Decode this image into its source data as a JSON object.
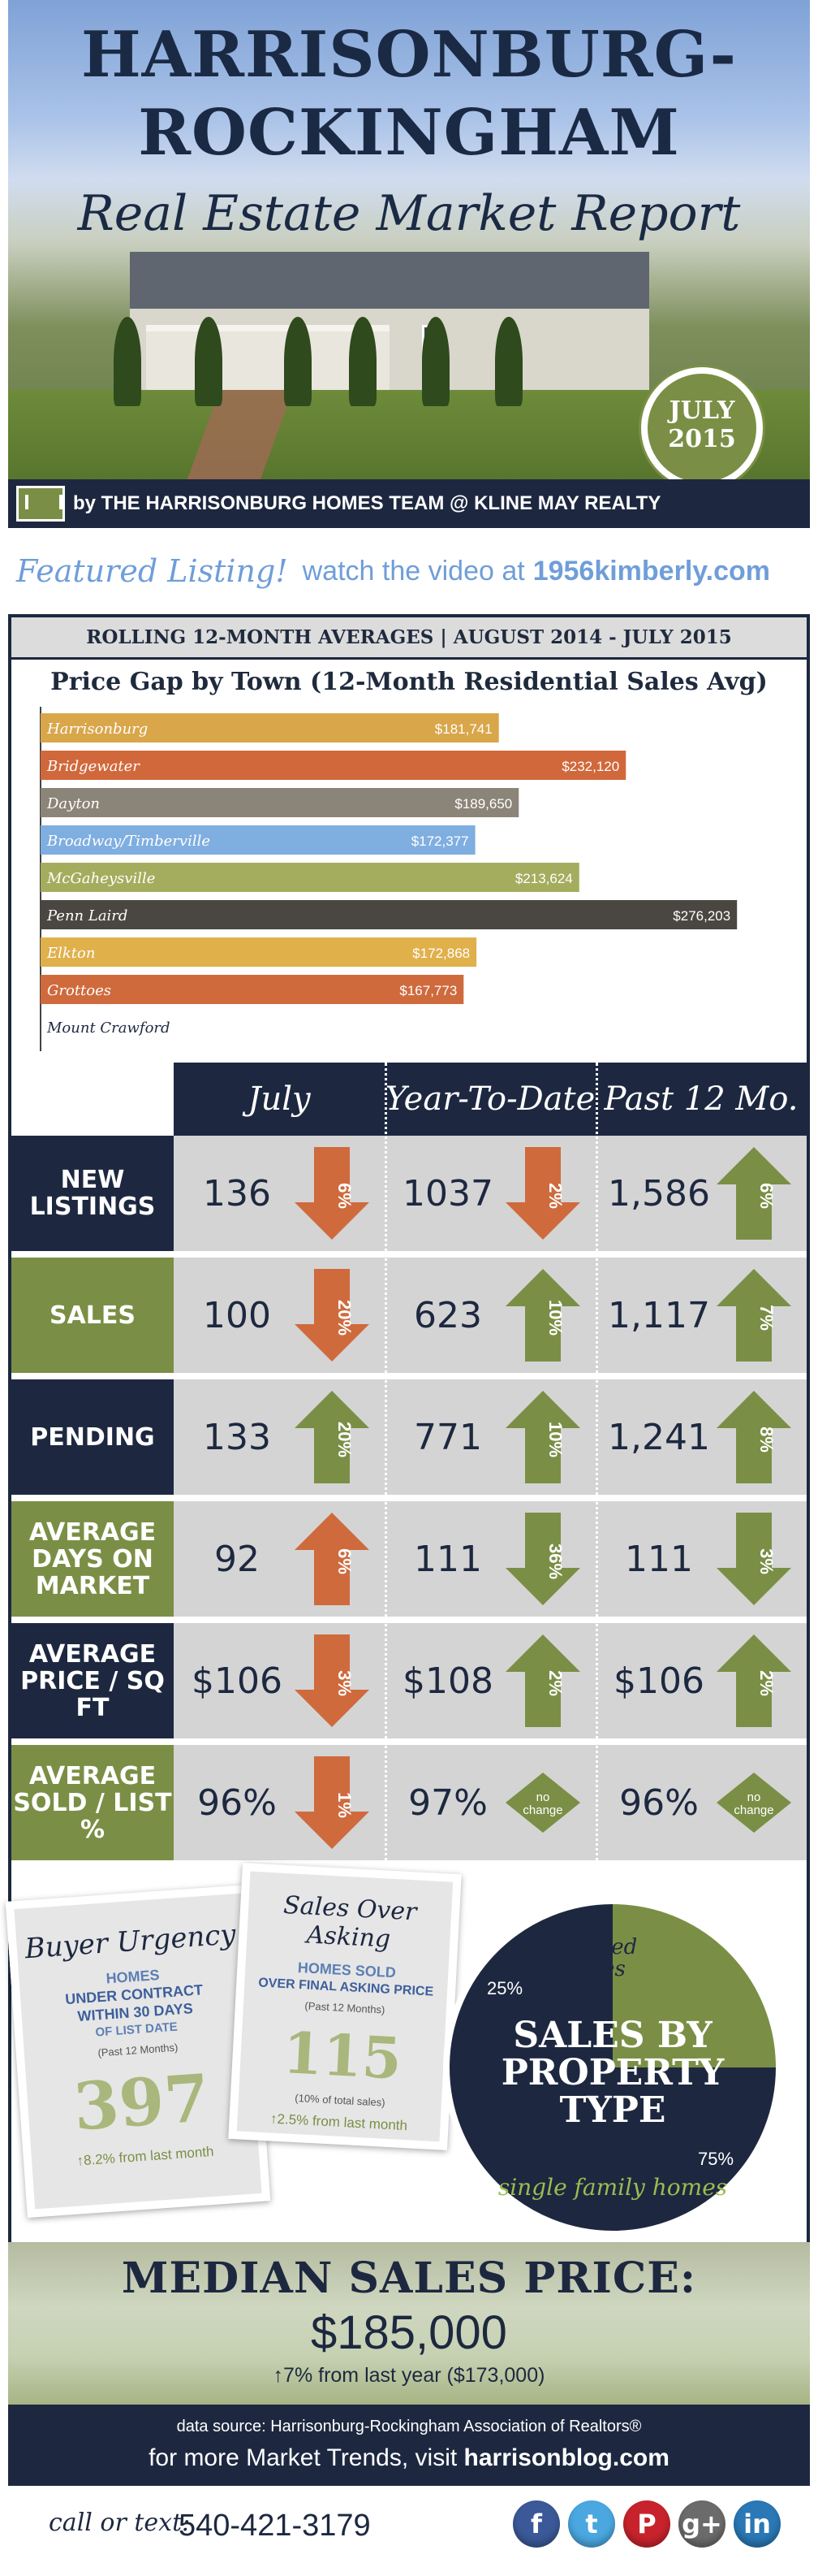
{
  "header": {
    "title_line1": "HARRISONBURG-",
    "title_line2": "ROCKINGHAM",
    "subtitle": "Real Estate Market Report",
    "month": "JULY",
    "year": "2015",
    "byline": "by THE HARRISONBURG HOMES TEAM @ KLINE MAY REALTY"
  },
  "featured": {
    "label": "Featured Listing!",
    "text": "watch the video at",
    "url": "1956kimberly.com"
  },
  "rolling_header": "ROLLING 12-MONTH AVERAGES | AUGUST 2014 - JULY 2015",
  "chart_title": "Price Gap by Town (12-Month Residential Sales Avg)",
  "chart_data": {
    "type": "bar",
    "orientation": "horizontal",
    "title": "Price Gap by Town (12-Month Residential Sales Avg)",
    "categories": [
      "Harrisonburg",
      "Bridgewater",
      "Dayton",
      "Broadway/Timberville",
      "McGaheysville",
      "Penn Laird",
      "Elkton",
      "Grottoes",
      "Mount Crawford"
    ],
    "values": [
      181741,
      232120,
      189650,
      172377,
      213624,
      276203,
      172868,
      167773,
      null
    ],
    "value_labels": [
      "$181,741",
      "$232,120",
      "$189,650",
      "$172,377",
      "$213,624",
      "$276,203",
      "$172,868",
      "$167,773",
      ""
    ],
    "colors": [
      "#d9a64a",
      "#d1683b",
      "#8b8478",
      "#7faee0",
      "#a4ad5e",
      "#4a4742",
      "#e0b04b",
      "#cf6a3d",
      "#ffffff"
    ],
    "xlim": [
      0,
      280000
    ]
  },
  "stats": {
    "columns": [
      "July",
      "Year-To-Date",
      "Past 12 Mo."
    ],
    "rows": [
      {
        "label": "NEW LISTINGS",
        "label_color": "#1d2840",
        "cells": [
          {
            "value": "136",
            "change": "6%",
            "dir": "down",
            "color": "#cf6a3d"
          },
          {
            "value": "1037",
            "change": "2%",
            "dir": "down",
            "color": "#cf6a3d"
          },
          {
            "value": "1,586",
            "change": "6%",
            "dir": "up",
            "color": "#7a8f45"
          }
        ]
      },
      {
        "label": "SALES",
        "label_color": "#7a8f45",
        "cells": [
          {
            "value": "100",
            "change": "20%",
            "dir": "down",
            "color": "#cf6a3d"
          },
          {
            "value": "623",
            "change": "10%",
            "dir": "up",
            "color": "#7a8f45"
          },
          {
            "value": "1,117",
            "change": "7%",
            "dir": "up",
            "color": "#7a8f45"
          }
        ]
      },
      {
        "label": "PENDING",
        "label_color": "#1d2840",
        "cells": [
          {
            "value": "133",
            "change": "20%",
            "dir": "up",
            "color": "#7a8f45"
          },
          {
            "value": "771",
            "change": "10%",
            "dir": "up",
            "color": "#7a8f45"
          },
          {
            "value": "1,241",
            "change": "8%",
            "dir": "up",
            "color": "#7a8f45"
          }
        ]
      },
      {
        "label": "AVERAGE DAYS ON MARKET",
        "label_color": "#7a8f45",
        "cells": [
          {
            "value": "92",
            "change": "6%",
            "dir": "up",
            "color": "#cf6a3d"
          },
          {
            "value": "111",
            "change": "36%",
            "dir": "down",
            "color": "#7a8f45"
          },
          {
            "value": "111",
            "change": "3%",
            "dir": "down",
            "color": "#7a8f45"
          }
        ]
      },
      {
        "label": "AVERAGE PRICE / SQ FT",
        "label_color": "#1d2840",
        "cells": [
          {
            "value": "$106",
            "change": "3%",
            "dir": "down",
            "color": "#cf6a3d"
          },
          {
            "value": "$108",
            "change": "2%",
            "dir": "up",
            "color": "#7a8f45"
          },
          {
            "value": "$106",
            "change": "2%",
            "dir": "up",
            "color": "#7a8f45"
          }
        ]
      },
      {
        "label": "AVERAGE SOLD / LIST %",
        "label_color": "#7a8f45",
        "cells": [
          {
            "value": "96%",
            "change": "1%",
            "dir": "down",
            "color": "#cf6a3d"
          },
          {
            "value": "97%",
            "change": "no change",
            "dir": "none",
            "color": "#7a8f45"
          },
          {
            "value": "96%",
            "change": "no change",
            "dir": "none",
            "color": "#7a8f45"
          }
        ]
      }
    ]
  },
  "buyer_urgency": {
    "title": "Buyer Urgency",
    "line1": "HOMES",
    "line2": "UNDER CONTRACT",
    "line3": "WITHIN 30 DAYS",
    "line4": "OF LIST DATE",
    "small": "(Past 12 Months)",
    "number": "397",
    "change": "↑8.2% from last month"
  },
  "sales_over_asking": {
    "title": "Sales Over Asking",
    "line1": "HOMES SOLD",
    "line2": "OVER FINAL ASKING PRICE",
    "small": "(Past 12 Months)",
    "number": "115",
    "note": "(10% of total sales)",
    "change": "↑2.5% from last month"
  },
  "property_type": {
    "title_line1": "SALES BY",
    "title_line2": "PROPERTY",
    "title_line3": "TYPE",
    "slices": [
      {
        "label": "attached homes",
        "pct": "25%",
        "value": 25,
        "color": "#7a8f45"
      },
      {
        "label": "single family homes",
        "pct": "75%",
        "value": 75,
        "color": "#1d2840"
      }
    ]
  },
  "median": {
    "title": "MEDIAN SALES PRICE:",
    "value": "$185,000",
    "delta": "↑7% from last year ($173,000)"
  },
  "footer": {
    "source": "data source: Harrisonburg-Rockingham Association of Realtors®",
    "more": "for more Market Trends, visit",
    "site": "harrisonblog.com"
  },
  "contact": {
    "label": "call or text:",
    "phone": "540-421-3179"
  },
  "social": [
    {
      "icon": "facebook-icon",
      "glyph": "f",
      "color": "#3b5998"
    },
    {
      "icon": "twitter-icon",
      "glyph": "t",
      "color": "#4aa7e0"
    },
    {
      "icon": "pinterest-icon",
      "glyph": "P",
      "color": "#c8232c"
    },
    {
      "icon": "googleplus-icon",
      "glyph": "g+",
      "color": "#6b6b6b"
    },
    {
      "icon": "linkedin-icon",
      "glyph": "in",
      "color": "#2a78b5"
    }
  ]
}
